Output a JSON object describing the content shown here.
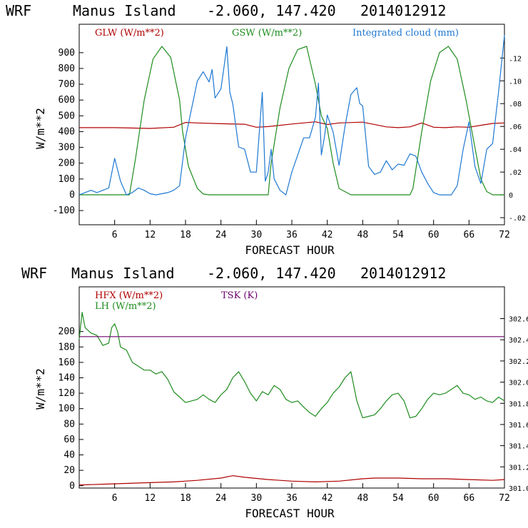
{
  "chart_data": [
    {
      "type": "line",
      "header": {
        "model": "WRF",
        "location": "Manus Island",
        "coords": "-2.060, 147.420",
        "run": "2014012912"
      },
      "xlabel": "FORECAST HOUR",
      "ylabel": "W/m**2",
      "xlim": [
        0,
        72
      ],
      "ylim": [
        -190,
        1080
      ],
      "x_ticks": [
        "6",
        "12",
        "18",
        "24",
        "30",
        "36",
        "42",
        "48",
        "54",
        "60",
        "66",
        "72"
      ],
      "y_ticks": [
        "-100",
        "0",
        "100",
        "200",
        "300",
        "400",
        "500",
        "600",
        "700",
        "800",
        "900"
      ],
      "y2lim": [
        -0.0262,
        0.1496
      ],
      "y2_ticks": [
        "-.02",
        "0",
        ".02",
        ".04",
        ".06",
        ".08",
        ".10",
        ".12"
      ],
      "colors": {
        "glw": "#b00000",
        "gsw": "#1e8c1e",
        "cloud": "#1e78d2"
      },
      "series": [
        {
          "name": "GLW (W/m**2)",
          "axis": "left",
          "x": [
            0,
            6,
            12,
            16,
            18,
            20,
            24,
            28,
            30,
            32,
            36,
            40,
            42,
            44,
            48,
            52,
            54,
            56,
            58,
            60,
            62,
            64,
            66,
            68,
            70,
            72
          ],
          "values": [
            425,
            425,
            420,
            428,
            458,
            455,
            450,
            447,
            428,
            432,
            448,
            462,
            445,
            455,
            460,
            430,
            425,
            430,
            455,
            428,
            425,
            430,
            428,
            440,
            452,
            455
          ]
        },
        {
          "name": "GSW (W/m**2)",
          "axis": "left",
          "x": [
            0,
            8.5,
            9.5,
            11,
            12.5,
            14,
            15.5,
            17,
            17.5,
            18.5,
            20,
            21,
            22,
            32,
            32.5,
            34,
            35.5,
            37,
            38.5,
            40,
            41,
            42,
            43,
            44,
            46,
            56,
            56.5,
            58,
            59.5,
            61,
            62.5,
            64,
            65.5,
            67,
            68,
            69,
            70,
            72
          ],
          "values": [
            0,
            0,
            220,
            600,
            860,
            940,
            870,
            600,
            400,
            180,
            40,
            5,
            0,
            0,
            200,
            550,
            800,
            920,
            940,
            700,
            500,
            420,
            200,
            40,
            0,
            0,
            40,
            400,
            720,
            900,
            940,
            860,
            600,
            300,
            100,
            20,
            0,
            0
          ]
        },
        {
          "name": "Integrated cloud (mm)",
          "axis": "right",
          "x": [
            0,
            2,
            3,
            4,
            5,
            6,
            7,
            8,
            9,
            10,
            11,
            12,
            13,
            14,
            15,
            16,
            17,
            18,
            19,
            20,
            21,
            22,
            22.5,
            23,
            24,
            25,
            25.5,
            26,
            27,
            28,
            29,
            30,
            31,
            31.5,
            32,
            32.5,
            33,
            34,
            35,
            36,
            37,
            38,
            39,
            40,
            40.5,
            41,
            41.5,
            42,
            43,
            44,
            45,
            46,
            47,
            47.5,
            48,
            49,
            50,
            51,
            52,
            53,
            54,
            55,
            56,
            57,
            58,
            59,
            60,
            61,
            62,
            63,
            64,
            65,
            66,
            67,
            68,
            69,
            70,
            71,
            72
          ],
          "values": [
            0,
            0.004,
            0.002,
            0.004,
            0.006,
            0.032,
            0.012,
            0.0,
            0.002,
            0.006,
            0.004,
            0.001,
            0.0,
            0.001,
            0.002,
            0.004,
            0.008,
            0.05,
            0.075,
            0.1,
            0.108,
            0.099,
            0.11,
            0.085,
            0.093,
            0.13,
            0.09,
            0.08,
            0.042,
            0.04,
            0.02,
            0.02,
            0.09,
            0.012,
            0.02,
            0.04,
            0.014,
            0.004,
            0.0,
            0.02,
            0.035,
            0.05,
            0.05,
            0.068,
            0.098,
            0.035,
            0.05,
            0.07,
            0.055,
            0.026,
            0.06,
            0.088,
            0.094,
            0.08,
            0.078,
            0.025,
            0.018,
            0.02,
            0.03,
            0.022,
            0.027,
            0.026,
            0.036,
            0.034,
            0.02,
            0.01,
            0.002,
            0.0,
            0.0,
            0.0,
            0.008,
            0.04,
            0.064,
            0.025,
            0.01,
            0.04,
            0.045,
            0.09,
            0.14
          ]
        }
      ]
    },
    {
      "type": "line",
      "header": {
        "model": "WRF",
        "location": "Manus Island",
        "coords": "-2.060, 147.420",
        "run": "2014012912"
      },
      "xlabel": "FORECAST HOUR",
      "ylabel": "W/m**2",
      "xlim": [
        0,
        72
      ],
      "ylim": [
        -3,
        258
      ],
      "x_ticks": [
        "6",
        "12",
        "18",
        "24",
        "30",
        "36",
        "42",
        "48",
        "54",
        "60",
        "66",
        "72"
      ],
      "y_ticks": [
        "0",
        "20",
        "40",
        "60",
        "80",
        "100",
        "120",
        "140",
        "160",
        "180",
        "200"
      ],
      "y2lim": [
        301.0,
        302.9
      ],
      "y2_ticks": [
        "301.0",
        "301.2",
        "301.4",
        "301.6",
        "301.8",
        "302.0",
        "302.2",
        "302.4",
        "302.6"
      ],
      "colors": {
        "hfx": "#b00000",
        "lh": "#1e8c1e",
        "tsk": "#6e006e"
      },
      "series": [
        {
          "name": "HFX (W/m**2)",
          "axis": "left",
          "x": [
            0,
            4,
            8,
            12,
            16,
            20,
            24,
            26,
            28,
            32,
            36,
            40,
            44,
            48,
            50,
            54,
            58,
            62,
            66,
            70,
            72
          ],
          "values": [
            1,
            2,
            3,
            4,
            5,
            7,
            10,
            13,
            11,
            8,
            6,
            5,
            6,
            9,
            10,
            10,
            9,
            9,
            8,
            7,
            8
          ]
        },
        {
          "name": "LH (W/m**2)",
          "axis": "left",
          "x": [
            0,
            0.5,
            1,
            2,
            3,
            4,
            5,
            5.5,
            6,
            6.5,
            7,
            8,
            9,
            10,
            11,
            12,
            13,
            14,
            15,
            16,
            17,
            18,
            19,
            20,
            21,
            22,
            23,
            24,
            25,
            26,
            27,
            28,
            29,
            30,
            31,
            32,
            33,
            34,
            35,
            36,
            37,
            38,
            39,
            40,
            41,
            42,
            43,
            44,
            45,
            46,
            47,
            48,
            49,
            50,
            51,
            52,
            53,
            54,
            55,
            56,
            57,
            58,
            59,
            60,
            61,
            62,
            63,
            64,
            65,
            66,
            67,
            68,
            69,
            70,
            71,
            72
          ],
          "values": [
            190,
            225,
            205,
            198,
            195,
            182,
            185,
            205,
            210,
            200,
            180,
            176,
            160,
            155,
            150,
            150,
            145,
            148,
            138,
            122,
            115,
            108,
            110,
            112,
            118,
            112,
            108,
            118,
            125,
            140,
            148,
            135,
            120,
            110,
            122,
            118,
            130,
            125,
            112,
            108,
            110,
            102,
            95,
            90,
            100,
            108,
            120,
            128,
            140,
            148,
            110,
            88,
            90,
            92,
            100,
            110,
            118,
            120,
            110,
            88,
            90,
            100,
            112,
            120,
            118,
            120,
            125,
            130,
            120,
            118,
            112,
            115,
            110,
            108,
            115,
            110
          ]
        },
        {
          "name": "TSK (K)",
          "axis": "right",
          "x": [
            0,
            72
          ],
          "values": [
            302.43,
            302.43
          ]
        }
      ]
    }
  ]
}
